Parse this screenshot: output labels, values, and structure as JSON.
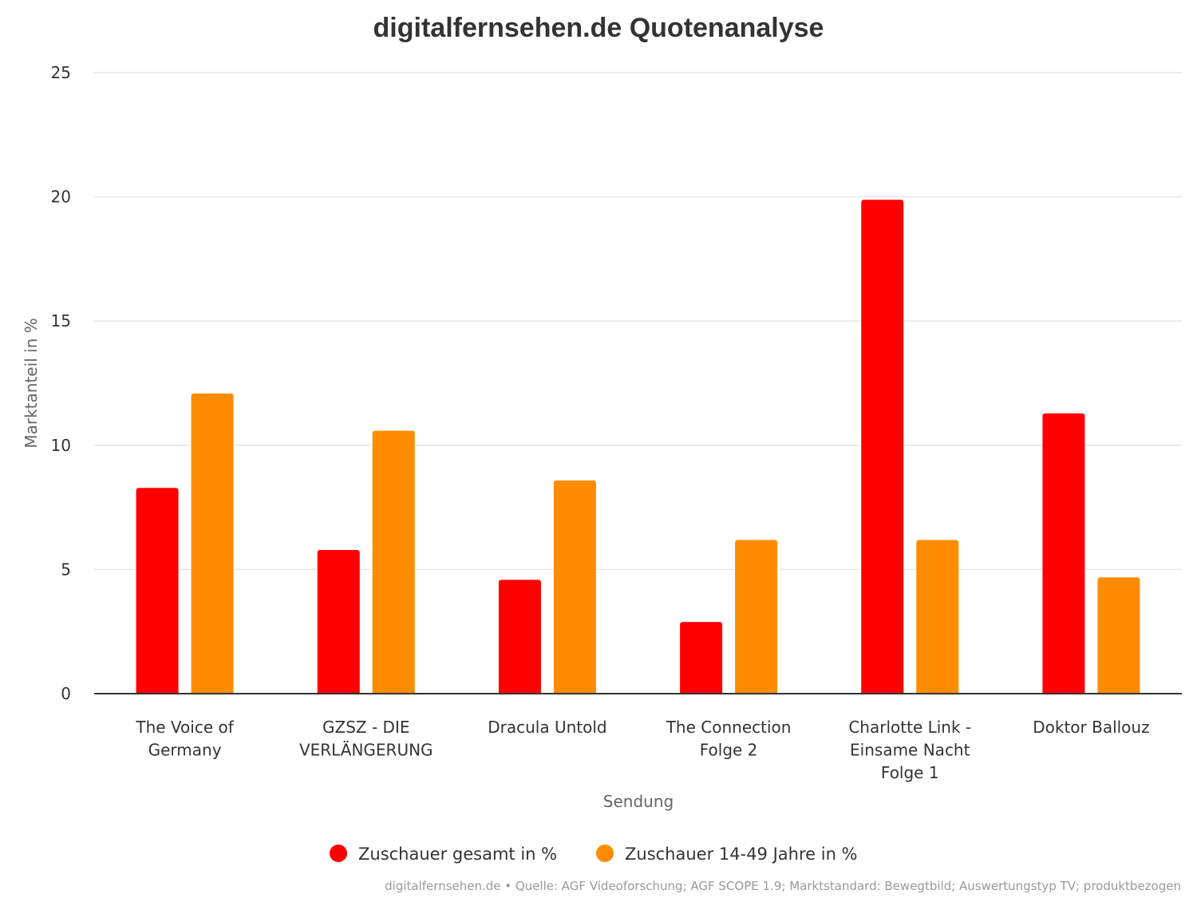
{
  "chart_data": {
    "type": "bar",
    "title": "digitalfernsehen.de Quotenanalyse",
    "xlabel": "Sendung",
    "ylabel": "Marktanteil in %",
    "ylim": [
      0,
      25
    ],
    "yticks": [
      0,
      5,
      10,
      15,
      20,
      25
    ],
    "grid": true,
    "legend_position": "bottom-center",
    "categories": [
      [
        "The Voice of",
        "Germany"
      ],
      [
        "GZSZ - DIE",
        "VERLÄNGERUNG"
      ],
      [
        "Dracula Untold"
      ],
      [
        "The Connection",
        "Folge 2"
      ],
      [
        "Charlotte Link -",
        "Einsame Nacht",
        "Folge 1"
      ],
      [
        "Doktor Ballouz"
      ]
    ],
    "series": [
      {
        "name": "Zuschauer gesamt in %",
        "color": "#ff0000",
        "values": [
          8.3,
          5.8,
          4.6,
          2.9,
          19.9,
          11.3
        ]
      },
      {
        "name": "Zuschauer 14-49 Jahre in %",
        "color": "#ff8c00",
        "values": [
          12.1,
          10.6,
          8.6,
          6.2,
          6.2,
          4.7
        ]
      }
    ],
    "credit": "digitalfernsehen.de • Quelle: AGF Videoforschung; AGF SCOPE 1.9; Marktstandard: Bewegtbild; Auswertungstyp TV; produktbezogen"
  }
}
